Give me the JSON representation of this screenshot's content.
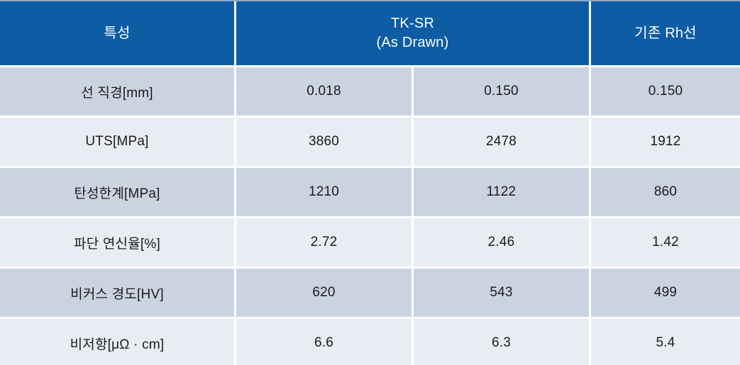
{
  "colors": {
    "header_bg": "#0e5ca4",
    "header_topline": "#8ea9c6",
    "header_text": "#ffffff",
    "row_dark": "#ccd3e0",
    "row_light": "#e9ecf3",
    "gap": "#ffffff",
    "body_text": "#1b1b1b"
  },
  "table": {
    "header": {
      "property_col": "특성",
      "tksr_line1": "TK-SR",
      "tksr_line2": "(As Drawn)",
      "rh_col": "기존 Rh선"
    },
    "rows": [
      {
        "label": "선 직경[mm]",
        "v1": "0.018",
        "v2": "0.150",
        "v3": "0.150"
      },
      {
        "label": "UTS[MPa]",
        "v1": "3860",
        "v2": "2478",
        "v3": "1912"
      },
      {
        "label": "탄성한계[MPa]",
        "v1": "1210",
        "v2": "1122",
        "v3": "860"
      },
      {
        "label": "파단 연신율[%]",
        "v1": "2.72",
        "v2": "2.46",
        "v3": "1.42"
      },
      {
        "label": "비커스 경도[HV]",
        "v1": "620",
        "v2": "543",
        "v3": "499"
      },
      {
        "label": "비저항[μΩ · cm]",
        "v1": "6.6",
        "v2": "6.3",
        "v3": "5.4"
      }
    ]
  },
  "chart_data": {
    "type": "table",
    "title": "",
    "header": [
      "특성",
      "TK-SR (As Drawn)",
      "기존 Rh선"
    ],
    "header_column_spans": [
      1,
      2,
      1
    ],
    "rows": [
      [
        "선 직경[mm]",
        "0.018",
        "0.150",
        "0.150"
      ],
      [
        "UTS[MPa]",
        "3860",
        "2478",
        "1912"
      ],
      [
        "탄성한계[MPa]",
        "1210",
        "1122",
        "860"
      ],
      [
        "파단 연신율[%]",
        "2.72",
        "2.46",
        "1.42"
      ],
      [
        "비커스 경도[HV]",
        "620",
        "543",
        "499"
      ],
      [
        "비저항[μΩ · cm]",
        "6.6",
        "6.3",
        "5.4"
      ]
    ]
  }
}
